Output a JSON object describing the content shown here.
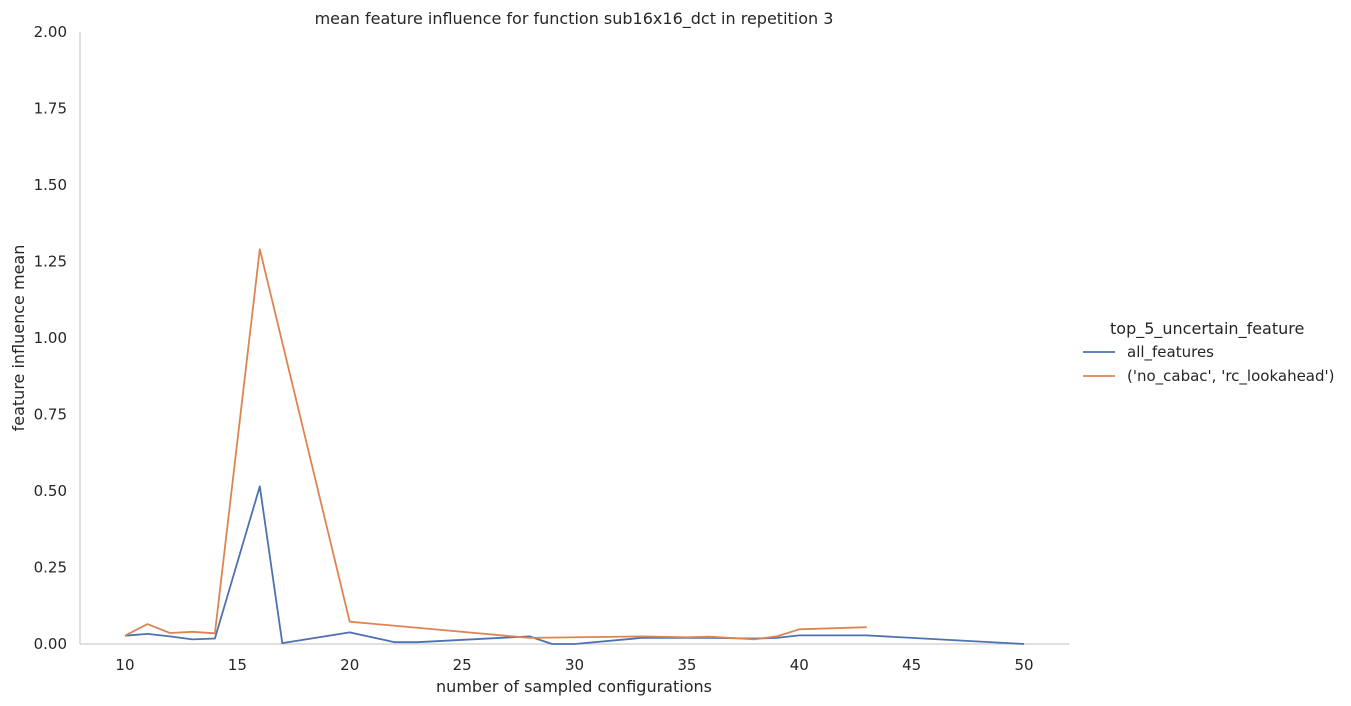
{
  "chart_data": {
    "type": "line",
    "title": "mean feature influence for function sub16x16_dct in repetition 3",
    "xlabel": "number of sampled configurations",
    "ylabel": "feature influence mean",
    "xlim": [
      8,
      52
    ],
    "ylim": [
      0,
      2.0
    ],
    "xticks": [
      "10",
      "15",
      "20",
      "25",
      "30",
      "35",
      "40",
      "45",
      "50"
    ],
    "yticks": [
      "0.00",
      "0.25",
      "0.50",
      "0.75",
      "1.00",
      "1.25",
      "1.50",
      "1.75",
      "2.00"
    ],
    "grid": false,
    "legend": {
      "title": "top_5_uncertain_feature",
      "placement": "right"
    },
    "series": [
      {
        "name": "all_features",
        "color": "#4c72b0",
        "points": [
          [
            10,
            0.027
          ],
          [
            11,
            0.033
          ],
          [
            12,
            0.025
          ],
          [
            13,
            0.015
          ],
          [
            14,
            0.018
          ],
          [
            16,
            0.515
          ],
          [
            17,
            0.003
          ],
          [
            20,
            0.038
          ],
          [
            22,
            0.006
          ],
          [
            23,
            0.006
          ],
          [
            28,
            0.025
          ],
          [
            29,
            0.0
          ],
          [
            30,
            0.0
          ],
          [
            33,
            0.02
          ],
          [
            35,
            0.02
          ],
          [
            36,
            0.02
          ],
          [
            38,
            0.018
          ],
          [
            39,
            0.02
          ],
          [
            40,
            0.028
          ],
          [
            43,
            0.028
          ],
          [
            50,
            0.0
          ]
        ]
      },
      {
        "name": "('no_cabac', 'rc_lookahead')",
        "color": "#dd8452",
        "points": [
          [
            10,
            0.027
          ],
          [
            11,
            0.065
          ],
          [
            12,
            0.036
          ],
          [
            13,
            0.04
          ],
          [
            14,
            0.035
          ],
          [
            16,
            1.29
          ],
          [
            20,
            0.073
          ],
          [
            28,
            0.02
          ],
          [
            33,
            0.025
          ],
          [
            35,
            0.022
          ],
          [
            36,
            0.024
          ],
          [
            38,
            0.015
          ],
          [
            39,
            0.025
          ],
          [
            40,
            0.048
          ],
          [
            43,
            0.055
          ]
        ]
      }
    ]
  }
}
